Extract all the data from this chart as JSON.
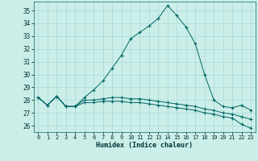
{
  "xlabel": "Humidex (Indice chaleur)",
  "ylabel": "",
  "xlim": [
    -0.5,
    23.5
  ],
  "ylim": [
    25.5,
    35.7
  ],
  "yticks": [
    26,
    27,
    28,
    29,
    30,
    31,
    32,
    33,
    34,
    35
  ],
  "xticks": [
    0,
    1,
    2,
    3,
    4,
    5,
    6,
    7,
    8,
    9,
    10,
    11,
    12,
    13,
    14,
    15,
    16,
    17,
    18,
    19,
    20,
    21,
    22,
    23
  ],
  "background_color": "#cceee8",
  "grid_color": "#aadddd",
  "line_color": "#006666",
  "series": {
    "humidex_main": [
      28.2,
      27.6,
      28.3,
      27.5,
      27.5,
      28.2,
      28.8,
      29.5,
      30.5,
      31.5,
      32.8,
      33.3,
      33.8,
      34.4,
      35.4,
      34.6,
      33.7,
      32.4,
      30.0,
      28.0,
      27.5,
      27.4,
      27.6,
      27.2
    ],
    "humidex_low": [
      28.2,
      27.6,
      28.3,
      27.5,
      27.5,
      27.8,
      27.8,
      27.9,
      27.9,
      27.9,
      27.8,
      27.8,
      27.7,
      27.6,
      27.5,
      27.4,
      27.3,
      27.2,
      27.0,
      26.9,
      26.7,
      26.6,
      26.1,
      25.8
    ],
    "humidex_mid": [
      28.2,
      27.6,
      28.3,
      27.5,
      27.5,
      28.0,
      28.0,
      28.1,
      28.2,
      28.2,
      28.1,
      28.1,
      28.0,
      27.9,
      27.8,
      27.7,
      27.6,
      27.5,
      27.3,
      27.2,
      27.0,
      26.9,
      26.7,
      26.5
    ]
  }
}
